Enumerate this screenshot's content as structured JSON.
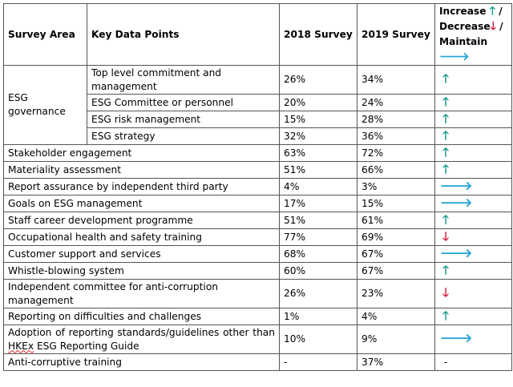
{
  "colors": {
    "increase": "#1a9a8c",
    "decrease": "#d21f3c",
    "maintain": "#1fa3d6"
  },
  "header": {
    "col_area": "Survey Area",
    "col_points": "Key Data Points",
    "col_2018": "2018 Survey",
    "col_2019": "2019 Survey",
    "col_trend_increase": "Increase",
    "col_trend_decrease": "Decrease",
    "col_trend_maintain": "Maintain",
    "separator": "/"
  },
  "arrow_glyphs": {
    "increase": "🡑",
    "decrease": "🡓",
    "maintain": "🡒"
  },
  "esg_group": {
    "label": "ESG governance",
    "rows": [
      {
        "point": "Top level commitment and management",
        "s2018": "26%",
        "s2019": "34%",
        "trend": "increase"
      },
      {
        "point": "ESG Committee or personnel",
        "s2018": "20%",
        "s2019": "24%",
        "trend": "increase"
      },
      {
        "point": "ESG risk management",
        "s2018": "15%",
        "s2019": "28%",
        "trend": "increase"
      },
      {
        "point": "ESG strategy",
        "s2018": "32%",
        "s2019": "36%",
        "trend": "increase"
      }
    ]
  },
  "rows": [
    {
      "area": "Stakeholder engagement",
      "s2018": "63%",
      "s2019": "72%",
      "trend": "increase"
    },
    {
      "area": "Materiality assessment",
      "s2018": "51%",
      "s2019": "66%",
      "trend": "increase"
    },
    {
      "area": "Report assurance by independent third party",
      "s2018": "4%",
      "s2019": "3%",
      "trend": "maintain"
    },
    {
      "area": "Goals on ESG management",
      "s2018": "17%",
      "s2019": "15%",
      "trend": "maintain"
    },
    {
      "area": "Staff career development programme",
      "s2018": "51%",
      "s2019": "61%",
      "trend": "increase"
    },
    {
      "area": "Occupational health and safety training",
      "s2018": "77%",
      "s2019": "69%",
      "trend": "decrease"
    },
    {
      "area": "Customer support and services",
      "s2018": "68%",
      "s2019": "67%",
      "trend": "maintain"
    },
    {
      "area": "Whistle-blowing system",
      "s2018": "60%",
      "s2019": "67%",
      "trend": "increase"
    },
    {
      "area": "Independent committee for anti-corruption management",
      "s2018": "26%",
      "s2019": "23%",
      "trend": "decrease"
    },
    {
      "area": "Reporting on difficulties and challenges",
      "s2018": "1%",
      "s2019": "4%",
      "trend": "increase"
    },
    {
      "area_prefix": "Adoption of reporting standards/guidelines other than ",
      "area_mark": "HKEx",
      "area_suffix": " ESG Reporting Guide",
      "s2018": "10%",
      "s2019": "9%",
      "trend": "maintain"
    },
    {
      "area": "Anti-corruptive training",
      "s2018": "-",
      "s2019": "37%",
      "trend": "none",
      "trend_text": "-"
    }
  ]
}
